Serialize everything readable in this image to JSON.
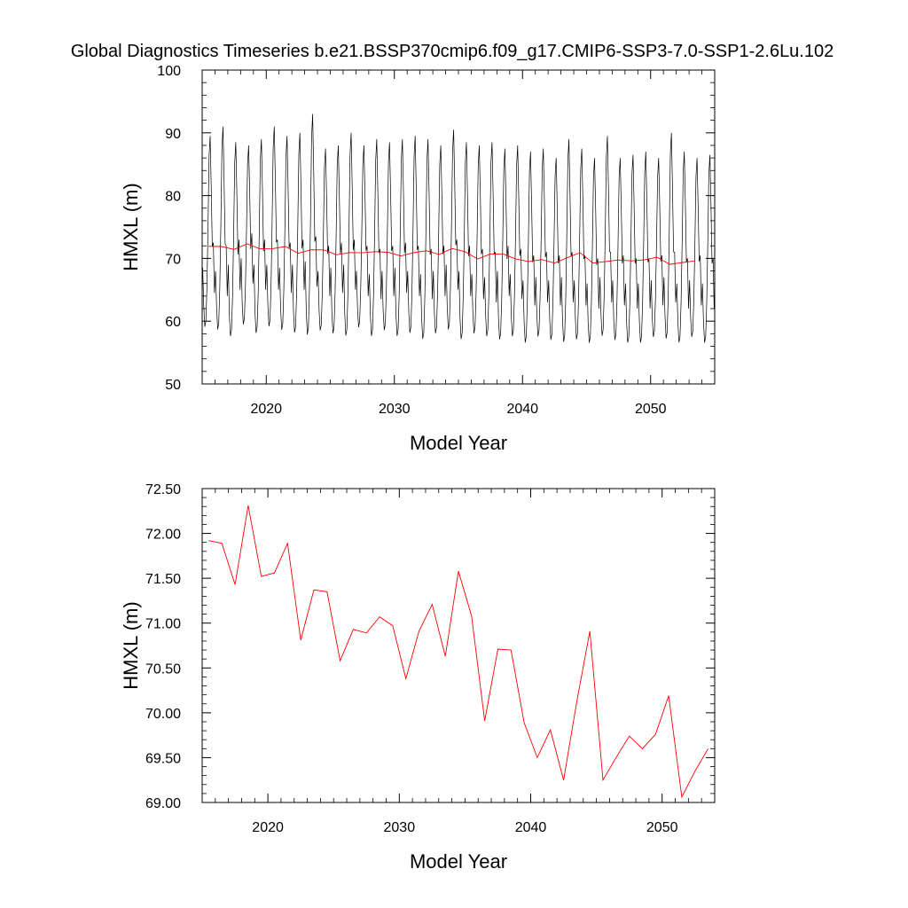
{
  "title": "Global Diagnostics Timeseries b.e21.BSSP370cmip6.f09_g17.CMIP6-SSP3-7.0-SSP1-2.6Lu.102",
  "colors": {
    "monthly": "#000000",
    "annual": "#ff0000",
    "axis": "#000000"
  },
  "chart_data": [
    {
      "type": "line",
      "xlabel": "Model Year",
      "ylabel": "HMXL (m)",
      "xlim": [
        2015,
        2055
      ],
      "ylim": [
        50,
        100
      ],
      "x_ticks": [
        2020,
        2030,
        2040,
        2050
      ],
      "x_tick_labels": [
        "2020",
        "2030",
        "2040",
        "2050"
      ],
      "y_ticks": [
        50,
        60,
        70,
        80,
        90,
        100
      ],
      "y_tick_labels": [
        "50",
        "60",
        "70",
        "80",
        "90",
        "100"
      ],
      "monthly_series": {
        "start_year": 2015,
        "months_per_year": 12,
        "annual_cycle_trough": [
          57.5,
          57.0,
          56.0,
          58.0,
          56.5,
          57.5,
          57.0,
          56.5,
          56.0,
          57.0,
          56.5,
          56.0,
          57.5,
          56.0,
          57.0,
          56.0,
          56.5,
          55.5,
          56.5,
          57.0,
          55.5,
          56.5,
          56.0,
          55.5,
          56.0,
          55.0,
          56.0,
          55.5,
          55.0,
          55.5,
          55.0,
          56.0,
          55.5,
          55.0,
          55.0,
          56.0,
          55.5,
          55.0,
          56.0,
          55.0
        ],
        "annual_cycle_peak": [
          89.5,
          91.0,
          88.5,
          88.0,
          89.0,
          91.0,
          89.5,
          90.0,
          93.0,
          87.5,
          88.0,
          90.0,
          88.0,
          89.0,
          88.5,
          89.0,
          89.5,
          89.0,
          88.0,
          90.5,
          88.5,
          88.0,
          88.5,
          87.5,
          88.0,
          87.0,
          87.5,
          86.0,
          89.0,
          87.5,
          86.0,
          89.5,
          86.0,
          86.5,
          87.0,
          86.0,
          90.0,
          87.0,
          86.0,
          86.5
        ],
        "secondary_peak": [
          72.5,
          72.0,
          73.0,
          74.0,
          73.0,
          73.0,
          72.5,
          73.0,
          73.5,
          72.0,
          72.5,
          73.0,
          72.0,
          71.5,
          72.0,
          72.5,
          72.0,
          71.5,
          72.0,
          73.0,
          72.0,
          71.5,
          71.0,
          72.0,
          71.5,
          70.5,
          71.0,
          70.5,
          71.0,
          70.5,
          70.0,
          71.0,
          70.5,
          70.0,
          70.0,
          70.5,
          71.0,
          70.0,
          70.5,
          70.0
        ]
      },
      "series": [
        {
          "x": [
            2015.5,
            2016.5,
            2017.5,
            2018.5,
            2019.5,
            2020.5,
            2021.5,
            2022.5,
            2023.5,
            2024.5,
            2025.5,
            2026.5,
            2027.5,
            2028.5,
            2029.5,
            2030.5,
            2031.5,
            2032.5,
            2033.5,
            2034.5,
            2035.5,
            2036.5,
            2037.5,
            2038.5,
            2039.5,
            2040.5,
            2041.5,
            2042.5,
            2043.5,
            2044.5,
            2045.5,
            2046.5,
            2047.5,
            2048.5,
            2049.5,
            2050.5,
            2051.5,
            2052.5,
            2053.5
          ],
          "values": [
            71.92,
            71.89,
            71.43,
            72.31,
            71.52,
            71.56,
            71.89,
            70.81,
            71.37,
            71.35,
            70.58,
            70.93,
            70.89,
            71.07,
            70.97,
            70.38,
            70.91,
            71.21,
            70.63,
            71.58,
            71.08,
            69.91,
            70.71,
            70.7,
            69.89,
            69.5,
            69.81,
            69.25,
            70.12,
            70.91,
            69.25,
            69.5,
            69.74,
            69.6,
            69.76,
            70.19,
            69.06,
            69.35,
            69.6
          ]
        }
      ]
    },
    {
      "type": "line",
      "xlabel": "Model Year",
      "ylabel": "HMXL (m)",
      "xlim": [
        2015,
        2054
      ],
      "ylim": [
        69.0,
        72.5
      ],
      "x_ticks": [
        2020,
        2030,
        2040,
        2050
      ],
      "x_tick_labels": [
        "2020",
        "2030",
        "2040",
        "2050"
      ],
      "y_ticks": [
        69.0,
        69.5,
        70.0,
        70.5,
        71.0,
        71.5,
        72.0,
        72.5
      ],
      "y_tick_labels": [
        "69.00",
        "69.50",
        "70.00",
        "70.50",
        "71.00",
        "71.50",
        "72.00",
        "72.50"
      ],
      "series": [
        {
          "x": [
            2015.5,
            2016.5,
            2017.5,
            2018.5,
            2019.5,
            2020.5,
            2021.5,
            2022.5,
            2023.5,
            2024.5,
            2025.5,
            2026.5,
            2027.5,
            2028.5,
            2029.5,
            2030.5,
            2031.5,
            2032.5,
            2033.5,
            2034.5,
            2035.5,
            2036.5,
            2037.5,
            2038.5,
            2039.5,
            2040.5,
            2041.5,
            2042.5,
            2043.5,
            2044.5,
            2045.5,
            2046.5,
            2047.5,
            2048.5,
            2049.5,
            2050.5,
            2051.5,
            2052.5,
            2053.5
          ],
          "values": [
            71.92,
            71.89,
            71.43,
            72.31,
            71.52,
            71.56,
            71.89,
            70.81,
            71.37,
            71.35,
            70.58,
            70.93,
            70.89,
            71.07,
            70.97,
            70.38,
            70.91,
            71.21,
            70.63,
            71.58,
            71.08,
            69.91,
            70.71,
            70.7,
            69.89,
            69.5,
            69.81,
            69.25,
            70.12,
            70.91,
            69.25,
            69.5,
            69.74,
            69.6,
            69.76,
            70.19,
            69.06,
            69.35,
            69.6
          ]
        }
      ]
    }
  ]
}
